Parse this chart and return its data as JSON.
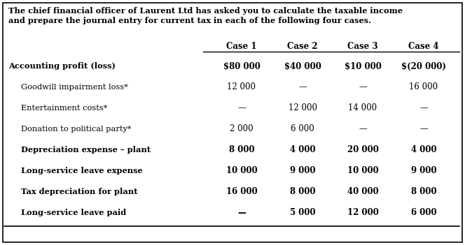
{
  "title_line1": "The chief financial officer of Laurent Ltd has asked you to calculate the taxable income",
  "title_line2": "and prepare the journal entry for current tax in each of the following four cases.",
  "col_headers": [
    "Case 1",
    "Case 2",
    "Case 3",
    "Case 4"
  ],
  "rows": [
    {
      "label": "Accounting profit (loss)",
      "values": [
        "$80 000",
        "$40 000",
        "$10 000",
        "$(20 000)"
      ],
      "bold_label": true,
      "bold_values": true,
      "indent": false
    },
    {
      "label": "Goodwill impairment loss*",
      "values": [
        "12 000",
        "—",
        "—",
        "16 000"
      ],
      "bold_label": false,
      "bold_values": false,
      "indent": true
    },
    {
      "label": "Entertainment costs*",
      "values": [
        "—",
        "12 000",
        "14 000",
        "—"
      ],
      "bold_label": false,
      "bold_values": false,
      "indent": true
    },
    {
      "label": "Donation to political party*",
      "values": [
        "2 000",
        "6 000",
        "—",
        "—"
      ],
      "bold_label": false,
      "bold_values": false,
      "indent": true
    },
    {
      "label": "Depreciation expense – plant",
      "values": [
        "8 000",
        "4 000",
        "20 000",
        "4 000"
      ],
      "bold_label": true,
      "bold_values": true,
      "indent": true
    },
    {
      "label": "Long-service leave expense",
      "values": [
        "10 000",
        "9 000",
        "10 000",
        "9 000"
      ],
      "bold_label": true,
      "bold_values": true,
      "indent": true
    },
    {
      "label": "Tax depreciation for plant",
      "values": [
        "16 000",
        "8 000",
        "40 000",
        "8 000"
      ],
      "bold_label": true,
      "bold_values": true,
      "indent": true
    },
    {
      "label": "Long-service leave paid",
      "values": [
        "—",
        "5 000",
        "12 000",
        "6 000"
      ],
      "bold_label": true,
      "bold_values": true,
      "indent": true
    }
  ],
  "bg_color": "#ffffff",
  "border_color": "#000000",
  "text_color": "#000000",
  "title_fontsize": 8.2,
  "header_fontsize": 8.5,
  "label_fontsize": 8.2,
  "value_fontsize": 8.5
}
